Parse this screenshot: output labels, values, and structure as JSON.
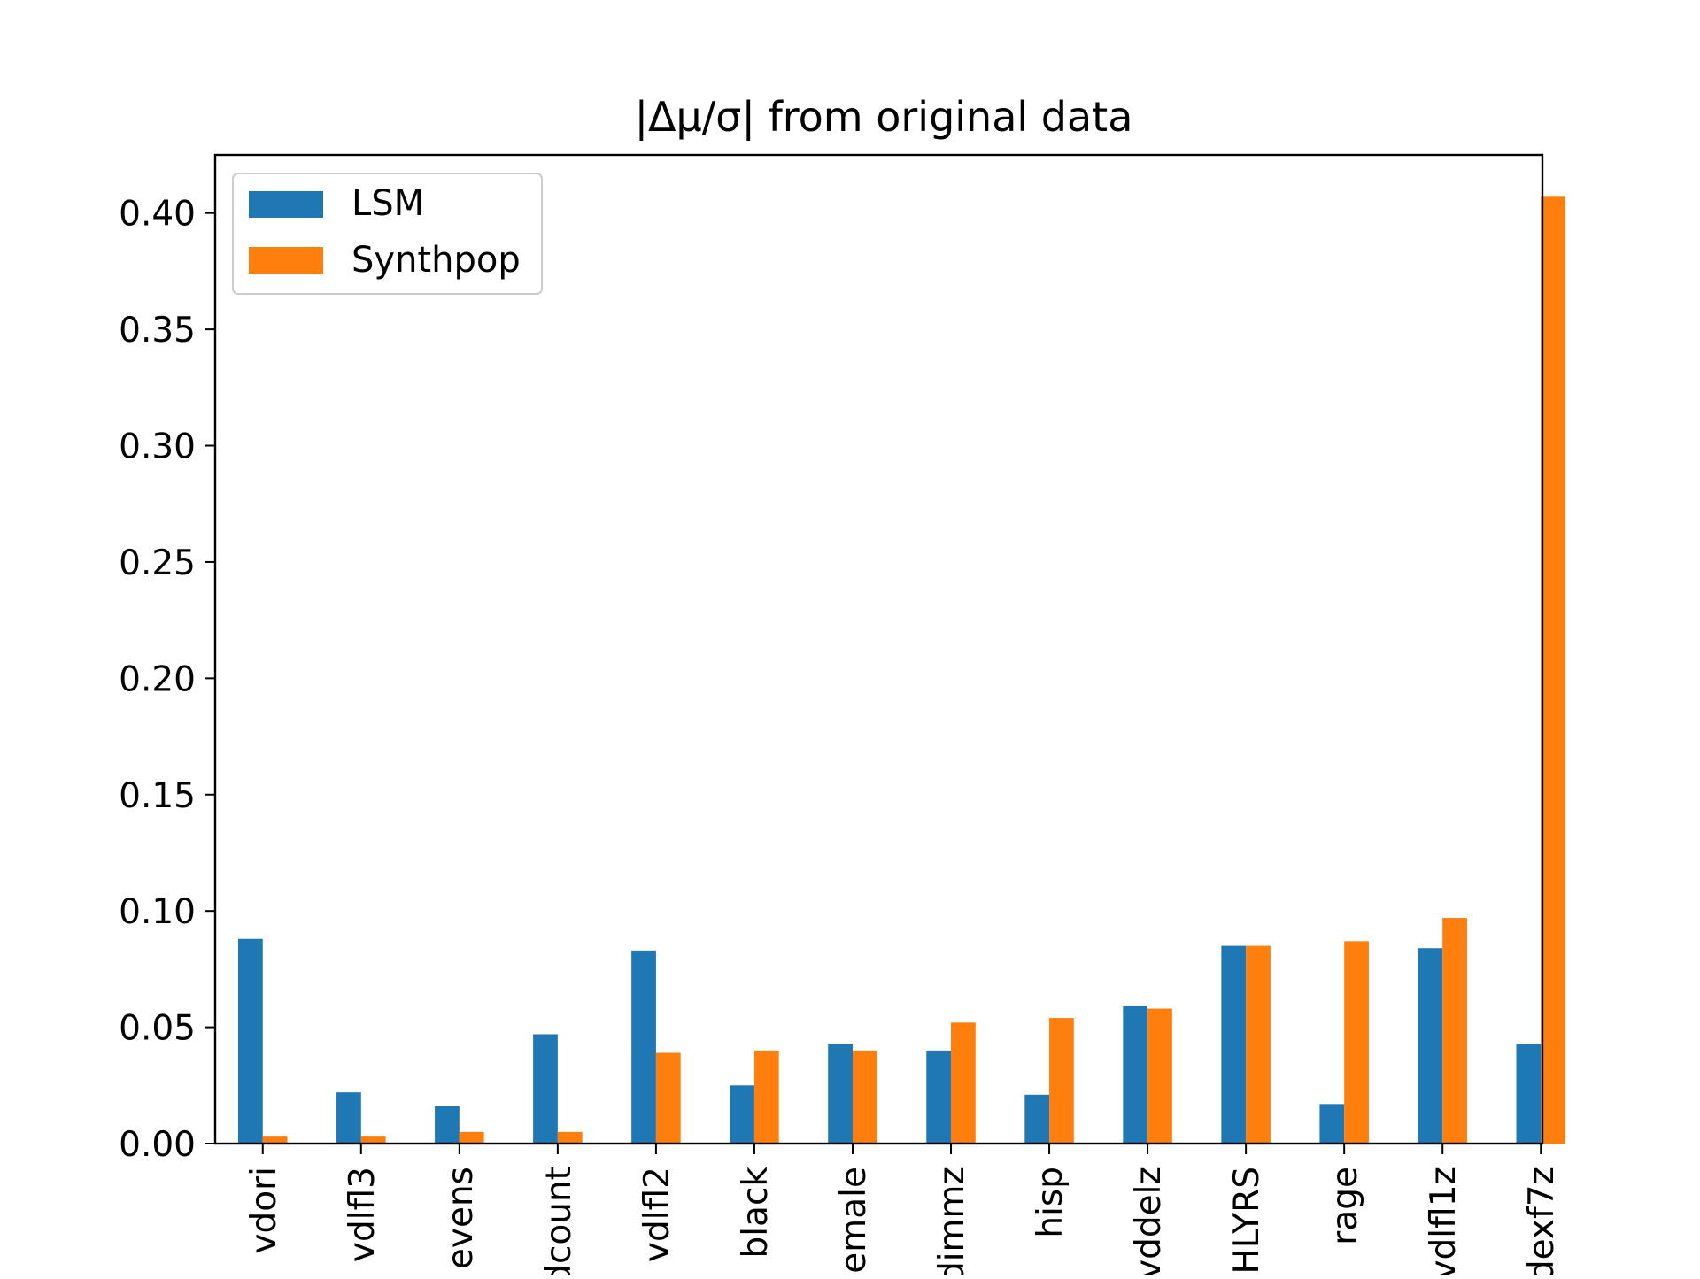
{
  "chart_data": {
    "type": "bar",
    "title": "|Δμ/σ| from original data",
    "xlabel": "",
    "ylabel": "",
    "ylim": [
      0,
      0.425
    ],
    "yticks": [
      "0.00",
      "0.05",
      "0.10",
      "0.15",
      "0.20",
      "0.25",
      "0.30",
      "0.35",
      "0.40"
    ],
    "categories": [
      "vdori",
      "vdlfl3",
      "evens",
      "dcount",
      "vdlfl2",
      "black",
      "emale",
      "dimmz",
      "hisp",
      "vddelz",
      "HLYRS",
      "rage",
      "vdlfl1z",
      "dexf7z"
    ],
    "series": [
      {
        "name": "LSM",
        "color": "#1f77b4",
        "values": [
          0.088,
          0.022,
          0.016,
          0.047,
          0.083,
          0.025,
          0.043,
          0.04,
          0.021,
          0.059,
          0.085,
          0.017,
          0.084,
          0.043
        ]
      },
      {
        "name": "Synthpop",
        "color": "#ff7f0e",
        "values": [
          0.003,
          0.003,
          0.005,
          0.005,
          0.039,
          0.04,
          0.04,
          0.052,
          0.054,
          0.058,
          0.085,
          0.087,
          0.097,
          0.407
        ]
      }
    ],
    "legend_position": "top-left",
    "grid": false
  }
}
